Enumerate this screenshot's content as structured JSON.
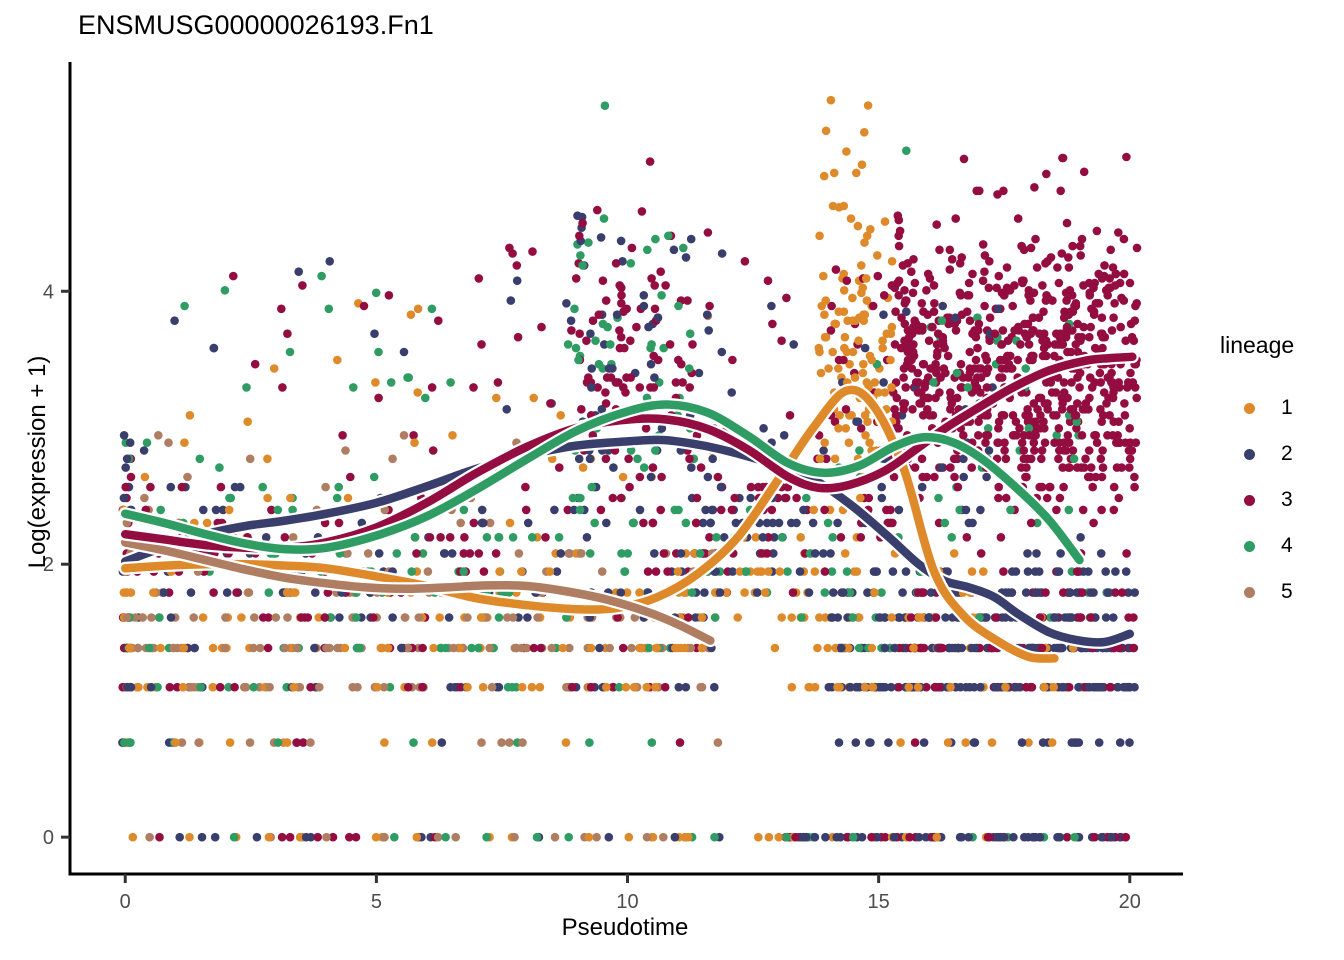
{
  "chart_data": {
    "type": "scatter",
    "title": "ENSMUSG00000026193.Fn1",
    "xlabel": "Pseudotime",
    "ylabel": "Log(expression + 1)",
    "xticks": [
      "0",
      "5",
      "10",
      "15",
      "20"
    ],
    "xtick_values": [
      0,
      5,
      10,
      15,
      20
    ],
    "yticks": [
      "0",
      "2",
      "4"
    ],
    "ytick_values": [
      0,
      2,
      4
    ],
    "xlim": [
      -1.1,
      21.0
    ],
    "ylim": [
      -0.27,
      5.68
    ],
    "grid": false,
    "background": "#ffffff",
    "axis_color": "#000000",
    "tick_label_color": "#4d4d4d",
    "legend": {
      "title": "lineage",
      "position": "right",
      "entries": [
        {
          "label": "1",
          "color": "#DE8A2B"
        },
        {
          "label": "2",
          "color": "#3A3E6C"
        },
        {
          "label": "3",
          "color": "#930D40"
        },
        {
          "label": "4",
          "color": "#2F9C64"
        },
        {
          "label": "5",
          "color": "#AF7D61"
        }
      ]
    },
    "smoothers": [
      {
        "lineage": "2",
        "color": "#3A3E6C",
        "points": [
          [
            0,
            2.02
          ],
          [
            0.8,
            2.13
          ],
          [
            1.6,
            2.22
          ],
          [
            2.4,
            2.28
          ],
          [
            3.2,
            2.32
          ],
          [
            4,
            2.37
          ],
          [
            5,
            2.45
          ],
          [
            6,
            2.57
          ],
          [
            7,
            2.7
          ],
          [
            8,
            2.8
          ],
          [
            9,
            2.87
          ],
          [
            10,
            2.9
          ],
          [
            10.7,
            2.91
          ],
          [
            11.5,
            2.87
          ],
          [
            12.3,
            2.8
          ],
          [
            13.1,
            2.71
          ],
          [
            13.8,
            2.6
          ],
          [
            14.5,
            2.42
          ],
          [
            15.2,
            2.2
          ],
          [
            15.8,
            2.0
          ],
          [
            16.3,
            1.88
          ],
          [
            16.8,
            1.83
          ],
          [
            17.3,
            1.76
          ],
          [
            17.8,
            1.63
          ],
          [
            18.4,
            1.5
          ],
          [
            19,
            1.44
          ],
          [
            19.5,
            1.43
          ],
          [
            20,
            1.49
          ]
        ]
      },
      {
        "lineage": "1",
        "color": "#DE8A2B",
        "points": [
          [
            0,
            1.97
          ],
          [
            0.8,
            1.99
          ],
          [
            1.6,
            2.0
          ],
          [
            2.4,
            2.0
          ],
          [
            3.2,
            1.99
          ],
          [
            4,
            1.97
          ],
          [
            5,
            1.91
          ],
          [
            6,
            1.84
          ],
          [
            7,
            1.75
          ],
          [
            8,
            1.7
          ],
          [
            9,
            1.67
          ],
          [
            9.8,
            1.68
          ],
          [
            10.6,
            1.76
          ],
          [
            11.4,
            1.93
          ],
          [
            12.2,
            2.2
          ],
          [
            13,
            2.62
          ],
          [
            13.7,
            3.0
          ],
          [
            14.35,
            3.27
          ],
          [
            14.9,
            3.16
          ],
          [
            15.5,
            2.7
          ],
          [
            16.1,
            1.95
          ],
          [
            16.7,
            1.62
          ],
          [
            17.4,
            1.43
          ],
          [
            18,
            1.32
          ],
          [
            18.5,
            1.31
          ]
        ]
      },
      {
        "lineage": "5",
        "color": "#AF7D61",
        "points": [
          [
            0,
            2.16
          ],
          [
            0.8,
            2.1
          ],
          [
            1.6,
            2.03
          ],
          [
            2.4,
            1.96
          ],
          [
            3.2,
            1.9
          ],
          [
            4,
            1.86
          ],
          [
            4.8,
            1.83
          ],
          [
            5.6,
            1.82
          ],
          [
            6.4,
            1.83
          ],
          [
            7.2,
            1.845
          ],
          [
            8,
            1.84
          ],
          [
            8.8,
            1.8
          ],
          [
            9.6,
            1.74
          ],
          [
            10.4,
            1.65
          ],
          [
            11,
            1.56
          ],
          [
            11.65,
            1.44
          ]
        ]
      },
      {
        "lineage": "3",
        "color": "#930D40",
        "points": [
          [
            0,
            2.22
          ],
          [
            0.8,
            2.18
          ],
          [
            1.6,
            2.14
          ],
          [
            2.4,
            2.12
          ],
          [
            3.2,
            2.12
          ],
          [
            4,
            2.16
          ],
          [
            5,
            2.27
          ],
          [
            6,
            2.45
          ],
          [
            7,
            2.67
          ],
          [
            8,
            2.86
          ],
          [
            9,
            3.0
          ],
          [
            10,
            3.06
          ],
          [
            10.8,
            3.06
          ],
          [
            11.6,
            2.99
          ],
          [
            12.4,
            2.84
          ],
          [
            13.2,
            2.64
          ],
          [
            13.8,
            2.56
          ],
          [
            14.4,
            2.58
          ],
          [
            15.1,
            2.68
          ],
          [
            15.7,
            2.83
          ],
          [
            16.3,
            2.99
          ],
          [
            17,
            3.15
          ],
          [
            17.7,
            3.3
          ],
          [
            18.4,
            3.42
          ],
          [
            19.1,
            3.49
          ],
          [
            19.6,
            3.51
          ],
          [
            20.05,
            3.52
          ]
        ]
      },
      {
        "lineage": "4",
        "color": "#2F9C64",
        "points": [
          [
            0,
            2.37
          ],
          [
            0.8,
            2.3
          ],
          [
            1.6,
            2.22
          ],
          [
            2.4,
            2.15
          ],
          [
            3.2,
            2.11
          ],
          [
            4,
            2.12
          ],
          [
            5,
            2.21
          ],
          [
            6,
            2.35
          ],
          [
            7,
            2.55
          ],
          [
            8,
            2.77
          ],
          [
            9,
            2.98
          ],
          [
            10,
            3.12
          ],
          [
            10.8,
            3.17
          ],
          [
            11.6,
            3.11
          ],
          [
            12.4,
            2.94
          ],
          [
            13.2,
            2.74
          ],
          [
            13.9,
            2.67
          ],
          [
            14.6,
            2.72
          ],
          [
            15.3,
            2.86
          ],
          [
            15.9,
            2.93
          ],
          [
            16.5,
            2.89
          ],
          [
            17.1,
            2.76
          ],
          [
            17.8,
            2.54
          ],
          [
            18.4,
            2.32
          ],
          [
            19,
            2.03
          ]
        ]
      }
    ],
    "scatter_gen": {
      "seed": 42,
      "dot_radius": 4.3,
      "note": "dots lie on discrete log(count+1) rows; clusters reproduce observed density",
      "clusters": [
        {
          "lineage": "1",
          "x": [
            0,
            11.8
          ],
          "n": 120,
          "y": [
            0.62,
            2.25
          ],
          "bias": "mid"
        },
        {
          "lineage": "1",
          "x": [
            0,
            11.8
          ],
          "n": 25,
          "y": [
            2.25,
            3.3
          ],
          "bias": "uni"
        },
        {
          "lineage": "1",
          "x": [
            2,
            6
          ],
          "n": 6,
          "y": [
            3.3,
            4.3
          ],
          "bias": "uni"
        },
        {
          "lineage": "1",
          "x": [
            -0.06,
            0.12
          ],
          "n": 18,
          "y": [
            0.62,
            2.4
          ],
          "bias": "uni"
        },
        {
          "lineage": "1",
          "x": [
            11,
            13.8
          ],
          "n": 45,
          "y": [
            1.0,
            2.6
          ],
          "bias": "mid"
        },
        {
          "lineage": "1",
          "x": [
            13.8,
            15.3
          ],
          "n": 110,
          "y": [
            2.2,
            4.75
          ],
          "bias": "mid"
        },
        {
          "lineage": "1",
          "x": [
            13.9,
            14.8
          ],
          "n": 8,
          "y": [
            4.75,
            5.45
          ],
          "bias": "uni"
        },
        {
          "lineage": "1",
          "x": [
            13.5,
            17.2
          ],
          "n": 70,
          "y": [
            0.62,
            2.2
          ],
          "bias": "mid"
        },
        {
          "lineage": "1",
          "x": [
            17.2,
            19.6
          ],
          "n": 25,
          "y": [
            0.62,
            1.7
          ],
          "bias": "mid"
        },
        {
          "lineage": "1",
          "x": [
            0,
            12
          ],
          "n": 18,
          "y": [
            0,
            0
          ],
          "bias": "uni"
        },
        {
          "lineage": "1",
          "x": [
            12.5,
            17.5
          ],
          "n": 12,
          "y": [
            0,
            0
          ],
          "bias": "uni"
        },
        {
          "lineage": "2",
          "x": [
            0,
            11.8
          ],
          "n": 130,
          "y": [
            0.62,
            3.1
          ],
          "bias": "mid"
        },
        {
          "lineage": "2",
          "x": [
            0.5,
            11.5
          ],
          "n": 18,
          "y": [
            3.1,
            4.3
          ],
          "bias": "uni"
        },
        {
          "lineage": "2",
          "x": [
            -0.06,
            0.12
          ],
          "n": 18,
          "y": [
            0.62,
            3.0
          ],
          "bias": "uni"
        },
        {
          "lineage": "2",
          "x": [
            8.8,
            11.3
          ],
          "n": 45,
          "y": [
            2.3,
            4.6
          ],
          "bias": "uni"
        },
        {
          "lineage": "2",
          "x": [
            11.5,
            14
          ],
          "n": 55,
          "y": [
            1.6,
            3.0
          ],
          "bias": "mid"
        },
        {
          "lineage": "2",
          "x": [
            11.5,
            13.5
          ],
          "n": 8,
          "y": [
            3.0,
            4.3
          ],
          "bias": "uni"
        },
        {
          "lineage": "2",
          "x": [
            14,
            20.1
          ],
          "n": 300,
          "y": [
            0.62,
            2.25
          ],
          "bias": "mid"
        },
        {
          "lineage": "2",
          "x": [
            14,
            17.5
          ],
          "n": 35,
          "y": [
            2.25,
            3.9
          ],
          "bias": "uni"
        },
        {
          "lineage": "2",
          "x": [
            0.5,
            13
          ],
          "n": 12,
          "y": [
            0,
            0
          ],
          "bias": "uni"
        },
        {
          "lineage": "2",
          "x": [
            13,
            20.05
          ],
          "n": 45,
          "y": [
            0,
            0
          ],
          "bias": "uni"
        },
        {
          "lineage": "3",
          "x": [
            0,
            11.8
          ],
          "n": 130,
          "y": [
            0.62,
            3.1
          ],
          "bias": "mid"
        },
        {
          "lineage": "3",
          "x": [
            1,
            8.5
          ],
          "n": 22,
          "y": [
            3.1,
            4.35
          ],
          "bias": "uni"
        },
        {
          "lineage": "3",
          "x": [
            -0.06,
            0.12
          ],
          "n": 16,
          "y": [
            0.62,
            3.0
          ],
          "bias": "uni"
        },
        {
          "lineage": "3",
          "x": [
            8.8,
            11.3
          ],
          "n": 90,
          "y": [
            2.3,
            4.75
          ],
          "bias": "mid"
        },
        {
          "lineage": "3",
          "x": [
            11.3,
            14
          ],
          "n": 55,
          "y": [
            1.6,
            3.2
          ],
          "bias": "mid"
        },
        {
          "lineage": "3",
          "x": [
            11.5,
            13.2
          ],
          "n": 8,
          "y": [
            3.4,
            4.5
          ],
          "bias": "uni"
        },
        {
          "lineage": "3",
          "x": [
            14,
            15.3
          ],
          "n": 40,
          "y": [
            2.2,
            4.2
          ],
          "bias": "uni"
        },
        {
          "lineage": "3",
          "x": [
            15.3,
            20.15
          ],
          "n": 650,
          "y": [
            2.25,
            4.6
          ],
          "bias": "mid"
        },
        {
          "lineage": "3",
          "x": [
            16.5,
            20
          ],
          "n": 12,
          "y": [
            4.6,
            5.1
          ],
          "bias": "uni"
        },
        {
          "lineage": "3",
          "x": [
            15.3,
            20.1
          ],
          "n": 110,
          "y": [
            0.62,
            2.25
          ],
          "bias": "mid"
        },
        {
          "lineage": "3",
          "x": [
            0.5,
            12
          ],
          "n": 10,
          "y": [
            0,
            0
          ],
          "bias": "uni"
        },
        {
          "lineage": "3",
          "x": [
            13,
            20.1
          ],
          "n": 25,
          "y": [
            0,
            0
          ],
          "bias": "uni"
        },
        {
          "lineage": "4",
          "x": [
            0,
            11.8
          ],
          "n": 120,
          "y": [
            0.62,
            3.2
          ],
          "bias": "mid"
        },
        {
          "lineage": "4",
          "x": [
            1,
            8.5
          ],
          "n": 15,
          "y": [
            3.2,
            4.3
          ],
          "bias": "uni"
        },
        {
          "lineage": "4",
          "x": [
            -0.06,
            0.12
          ],
          "n": 14,
          "y": [
            0.62,
            3.1
          ],
          "bias": "uni"
        },
        {
          "lineage": "4",
          "x": [
            8.8,
            11.3
          ],
          "n": 55,
          "y": [
            2.3,
            4.7
          ],
          "bias": "uni"
        },
        {
          "lineage": "4",
          "x": [
            11.3,
            14.5
          ],
          "n": 25,
          "y": [
            1.3,
            2.9
          ],
          "bias": "mid"
        },
        {
          "lineage": "4",
          "x": [
            14.5,
            19.6
          ],
          "n": 55,
          "y": [
            1.3,
            3.9
          ],
          "bias": "uni"
        },
        {
          "lineage": "4",
          "x": [
            1,
            12
          ],
          "n": 8,
          "y": [
            0,
            0
          ],
          "bias": "uni"
        },
        {
          "lineage": "4",
          "x": [
            13,
            19.5
          ],
          "n": 10,
          "y": [
            0,
            0
          ],
          "bias": "uni"
        },
        {
          "lineage": "5",
          "x": [
            0,
            11.8
          ],
          "n": 150,
          "y": [
            0.62,
            2.3
          ],
          "bias": "mid"
        },
        {
          "lineage": "5",
          "x": [
            0,
            8
          ],
          "n": 20,
          "y": [
            2.3,
            3.0
          ],
          "bias": "uni"
        },
        {
          "lineage": "5",
          "x": [
            -0.06,
            0.12
          ],
          "n": 14,
          "y": [
            0.62,
            2.4
          ],
          "bias": "uni"
        },
        {
          "lineage": "5",
          "x": [
            0,
            11.5
          ],
          "n": 14,
          "y": [
            0,
            0
          ],
          "bias": "uni"
        }
      ],
      "extra_points": [
        {
          "lineage": "4",
          "x": 9.55,
          "y": 5.36
        },
        {
          "lineage": "4",
          "x": 15.55,
          "y": 5.03
        },
        {
          "lineage": "5",
          "x": 11.6,
          "y": 3.82
        },
        {
          "lineage": "1",
          "x": 14.05,
          "y": 5.4
        },
        {
          "lineage": "3",
          "x": 10.45,
          "y": 4.95
        }
      ]
    }
  }
}
